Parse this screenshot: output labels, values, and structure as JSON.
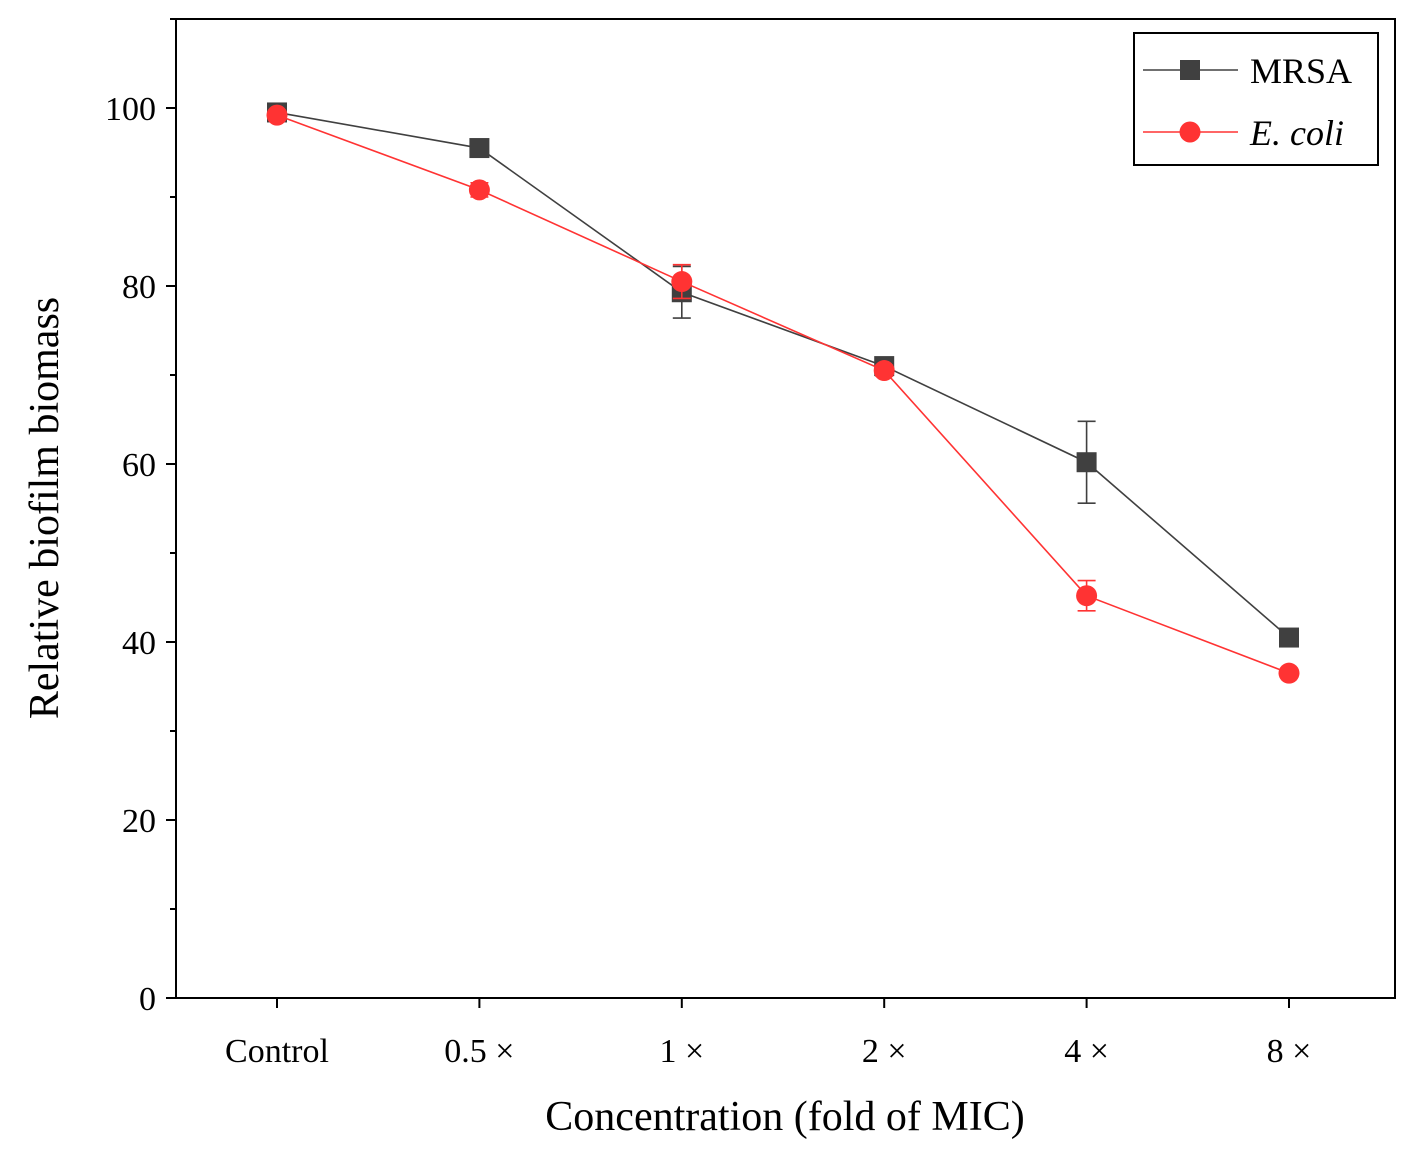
{
  "chart_data": {
    "type": "line",
    "title": "",
    "xlabel": "Concentration (fold of MIC)",
    "ylabel": "Relative biofilm biomass",
    "categories": [
      "Control",
      "0.5 ×",
      "1 ×",
      "2 ×",
      "4 ×",
      "8 ×"
    ],
    "ylim": [
      0,
      110
    ],
    "yticks": [
      0,
      20,
      40,
      60,
      80,
      100
    ],
    "yminor_step": 10,
    "grid": false,
    "legend_position": "top-right",
    "series": [
      {
        "name": "MRSA",
        "italic": false,
        "color": "#404040",
        "marker": "square",
        "values": [
          99.5,
          95.5,
          79.3,
          71.0,
          60.2,
          40.5
        ],
        "errors": [
          0.6,
          0.5,
          2.9,
          0.6,
          4.6,
          0.5
        ]
      },
      {
        "name": "E. coli",
        "italic": true,
        "color": "#ff3333",
        "marker": "circle",
        "values": [
          99.2,
          90.8,
          80.5,
          70.5,
          45.2,
          36.5
        ],
        "errors": [
          0.5,
          0.8,
          1.9,
          0.6,
          1.7,
          0.4
        ]
      }
    ]
  }
}
